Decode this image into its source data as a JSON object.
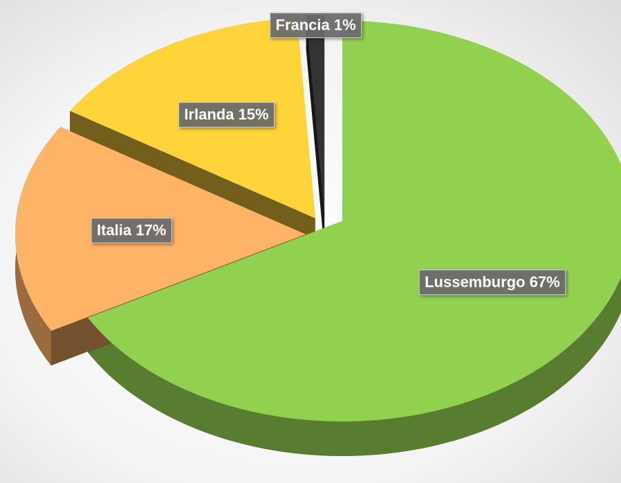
{
  "chart_data": {
    "type": "pie",
    "categories": [
      "Lussemburgo",
      "Italia",
      "Irlanda",
      "Francia"
    ],
    "values": [
      67,
      17,
      15,
      1
    ],
    "value_labels": [
      "Lussemburgo 67%",
      "Italia 17%",
      "Irlanda 15%",
      "Francia 1%"
    ],
    "colors": [
      "#92d050",
      "#ffb366",
      "#ffd43b",
      "#333333"
    ],
    "exploded": true,
    "three_d": true
  }
}
